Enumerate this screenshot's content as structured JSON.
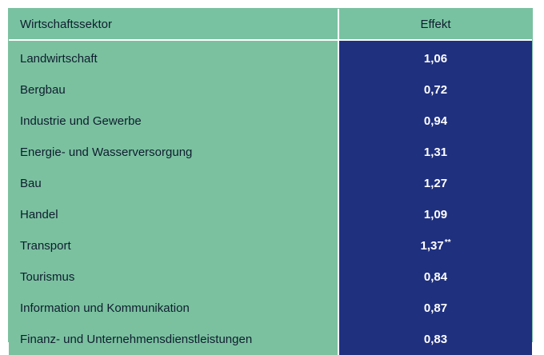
{
  "chart_data": {
    "type": "table",
    "columns": [
      "Wirtschaftssektor",
      "Effekt"
    ],
    "rows": [
      {
        "sector": "Landwirtschaft",
        "effect": "1,06",
        "mark": ""
      },
      {
        "sector": "Bergbau",
        "effect": "0,72",
        "mark": ""
      },
      {
        "sector": "Industrie und Gewerbe",
        "effect": "0,94",
        "mark": ""
      },
      {
        "sector": "Energie- und Wasserversorgung",
        "effect": "1,31",
        "mark": ""
      },
      {
        "sector": "Bau",
        "effect": "1,27",
        "mark": ""
      },
      {
        "sector": "Handel",
        "effect": "1,09",
        "mark": ""
      },
      {
        "sector": "Transport",
        "effect": "1,37",
        "mark": "**"
      },
      {
        "sector": "Tourismus",
        "effect": "0,84",
        "mark": ""
      },
      {
        "sector": "Information und Kommunikation",
        "effect": "0,87",
        "mark": ""
      },
      {
        "sector": "Finanz- und Unternehmensdienstleistungen",
        "effect": "0,83",
        "mark": ""
      }
    ],
    "colors": {
      "sector_bg": "#7bc1a0",
      "effect_bg": "#1f307f",
      "effect_text": "#ffffff"
    }
  }
}
